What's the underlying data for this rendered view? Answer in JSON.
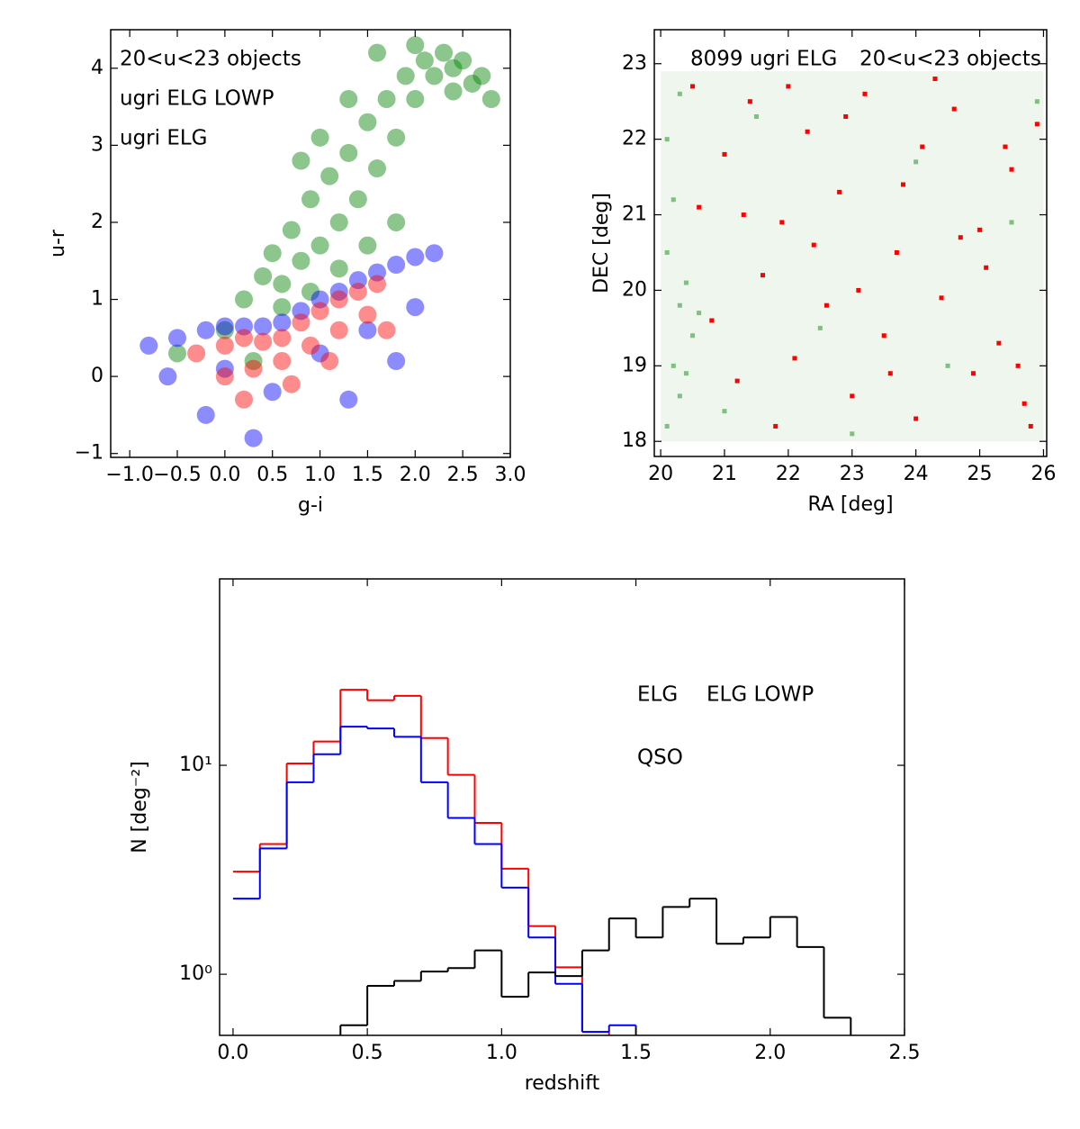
{
  "chart_data": [
    {
      "type": "scatter",
      "xlabel": "g-i",
      "ylabel": "u-r",
      "xlim": [
        -1.2,
        3.0
      ],
      "ylim": [
        -1.05,
        4.5
      ],
      "xticks": [
        {
          "value": -1,
          "label": "−1.0"
        },
        {
          "value": -0.5,
          "label": "−0.5"
        },
        {
          "value": 0,
          "label": "0.0"
        },
        0.5,
        {
          "value": 1,
          "label": "1.0"
        },
        1.5,
        {
          "value": 2,
          "label": "2.0"
        },
        2.5,
        {
          "value": 3,
          "label": "3.0"
        }
      ],
      "yticks": [
        {
          "value": -1,
          "label": "−1"
        },
        0,
        1,
        2,
        3,
        4
      ],
      "series": [
        {
          "name": "20<u<23 objects",
          "color": "#008000",
          "x": [
            0.2,
            0.4,
            0.5,
            0.6,
            0.7,
            0.8,
            0.9,
            1.0,
            1.1,
            1.2,
            1.3,
            1.4,
            1.5,
            1.6,
            1.7,
            1.8,
            1.9,
            2.0,
            2.1,
            2.2,
            2.3,
            2.4,
            2.5,
            2.6,
            2.7,
            0.6,
            0.9,
            1.2,
            1.5,
            1.8,
            1.0,
            1.3,
            0.8,
            1.6,
            2.0,
            2.4,
            -0.5,
            0.0,
            0.3,
            2.8
          ],
          "values": [
            1.0,
            1.3,
            1.6,
            1.2,
            1.9,
            1.5,
            2.3,
            1.7,
            2.6,
            2.0,
            2.9,
            2.3,
            3.3,
            2.7,
            3.6,
            3.1,
            3.9,
            3.6,
            4.1,
            3.9,
            4.2,
            4.0,
            4.1,
            3.8,
            3.9,
            0.9,
            1.1,
            1.4,
            1.7,
            2.0,
            3.1,
            3.6,
            2.8,
            4.2,
            4.3,
            3.7,
            0.3,
            0.6,
            0.2,
            3.6
          ]
        },
        {
          "name": "ugri ELG LOWP",
          "color": "#0000ff",
          "x": [
            -0.8,
            -0.5,
            -0.2,
            0.0,
            0.2,
            0.4,
            0.6,
            0.8,
            1.0,
            1.2,
            1.4,
            1.6,
            1.8,
            2.0,
            2.2,
            0.0,
            0.5,
            1.0,
            1.5,
            2.0,
            -0.6,
            -0.2,
            0.3,
            1.3,
            1.8
          ],
          "values": [
            0.4,
            0.5,
            0.6,
            0.65,
            0.65,
            0.65,
            0.7,
            0.85,
            1.0,
            1.1,
            1.25,
            1.35,
            1.45,
            1.55,
            1.6,
            0.1,
            -0.2,
            0.3,
            0.6,
            0.9,
            0.0,
            -0.5,
            -0.8,
            -0.3,
            0.2
          ]
        },
        {
          "name": "ugri ELG",
          "color": "#ff0000",
          "x": [
            -0.3,
            0.0,
            0.2,
            0.4,
            0.6,
            0.8,
            1.0,
            1.2,
            1.4,
            1.6,
            0.0,
            0.3,
            0.6,
            0.9,
            1.2,
            1.5,
            0.2,
            0.7,
            1.1,
            1.7
          ],
          "values": [
            0.3,
            0.4,
            0.5,
            0.45,
            0.5,
            0.7,
            0.85,
            1.0,
            1.1,
            1.2,
            0.0,
            0.1,
            0.2,
            0.4,
            0.6,
            0.8,
            -0.3,
            -0.1,
            0.2,
            0.6
          ]
        }
      ]
    },
    {
      "type": "scatter",
      "xlabel": "RA [deg]",
      "ylabel": "DEC [deg]",
      "xlim": [
        19.9,
        26.05
      ],
      "ylim": [
        17.8,
        23.45
      ],
      "xticks": [
        20,
        21,
        22,
        23,
        24,
        25,
        26
      ],
      "yticks": [
        18,
        19,
        20,
        21,
        22,
        23
      ],
      "series": [
        {
          "name": "20<u<23 objects",
          "color": "#7fbf7f",
          "x": [
            20.1,
            20.2,
            20.3,
            20.4,
            20.1,
            20.3,
            20.2,
            20.5,
            20.4,
            20.1,
            20.6,
            20.3,
            21.0,
            22.5,
            24.0,
            25.5,
            21.5,
            23.0,
            24.5,
            25.9
          ],
          "values": [
            18.2,
            19.0,
            19.8,
            20.1,
            20.5,
            18.6,
            21.2,
            19.4,
            18.9,
            22.0,
            19.7,
            22.6,
            18.4,
            19.5,
            21.7,
            20.9,
            22.3,
            18.1,
            19.0,
            22.5
          ]
        },
        {
          "name": "8099 ugri ELG",
          "color": "#ff0000",
          "x": [
            20.5,
            21.0,
            21.4,
            21.9,
            22.3,
            22.8,
            23.2,
            23.7,
            24.1,
            24.6,
            25.0,
            25.5,
            25.9,
            20.8,
            21.6,
            22.1,
            22.6,
            23.0,
            23.5,
            24.0,
            24.4,
            24.9,
            25.3,
            25.7,
            20.6,
            21.2,
            21.8,
            22.4,
            23.1,
            23.8,
            24.3,
            25.1,
            25.6,
            21.3,
            22.0,
            22.9,
            23.6,
            24.7,
            25.4,
            25.8
          ],
          "values": [
            22.7,
            21.8,
            22.5,
            20.9,
            22.1,
            21.3,
            22.6,
            20.5,
            21.9,
            22.4,
            20.8,
            21.6,
            22.2,
            19.6,
            20.2,
            19.1,
            19.8,
            18.6,
            19.4,
            18.3,
            19.9,
            18.9,
            19.3,
            18.5,
            21.1,
            18.8,
            18.2,
            20.6,
            20.0,
            21.4,
            22.8,
            20.3,
            19.0,
            21.0,
            22.7,
            22.3,
            18.9,
            20.7,
            21.9,
            18.2
          ]
        }
      ]
    },
    {
      "type": "histogram",
      "xlabel": "redshift",
      "ylabel": "N [deg⁻²]",
      "log_y": true,
      "xlim": [
        -0.05,
        2.5
      ],
      "ylim": [
        0.51,
        78
      ],
      "xticks": [
        {
          "value": 0,
          "label": "0.0"
        },
        0.5,
        {
          "value": 1,
          "label": "1.0"
        },
        1.5,
        {
          "value": 2,
          "label": "2.0"
        },
        2.5
      ],
      "yticks": [
        {
          "value": 1,
          "label": "10⁰"
        },
        {
          "value": 10,
          "label": "10¹"
        }
      ],
      "bins": [
        0,
        0.1,
        0.2,
        0.3,
        0.4,
        0.5,
        0.6,
        0.7,
        0.8,
        0.9,
        1.0,
        1.1,
        1.2,
        1.3,
        1.4,
        1.5,
        1.6,
        1.7,
        1.8,
        1.9,
        2.0,
        2.1,
        2.2,
        2.3
      ],
      "series": [
        {
          "name": "ELG",
          "color": "#ff0000",
          "values": [
            3.1,
            4.2,
            10.2,
            13,
            23,
            20.5,
            21.5,
            13.5,
            9,
            5.3,
            3.2,
            1.7,
            1.08,
            0.53,
            null,
            null,
            null,
            null,
            null,
            null,
            null,
            null,
            null
          ]
        },
        {
          "name": "ELG LOWP",
          "color": "#0000ff",
          "values": [
            2.3,
            4.0,
            8.3,
            11.3,
            15.3,
            15,
            13.7,
            8.3,
            5.6,
            4.2,
            2.6,
            1.5,
            0.9,
            0.53,
            0.57,
            null,
            null,
            null,
            null,
            null,
            null,
            null,
            null
          ]
        },
        {
          "name": "QSO",
          "color": "#000000",
          "values": [
            null,
            null,
            null,
            null,
            0.57,
            0.88,
            0.93,
            1.03,
            1.07,
            1.3,
            0.78,
            1.02,
            0.98,
            1.3,
            1.85,
            1.5,
            2.1,
            2.3,
            1.4,
            1.5,
            1.88,
            1.35,
            0.62
          ]
        }
      ]
    }
  ]
}
